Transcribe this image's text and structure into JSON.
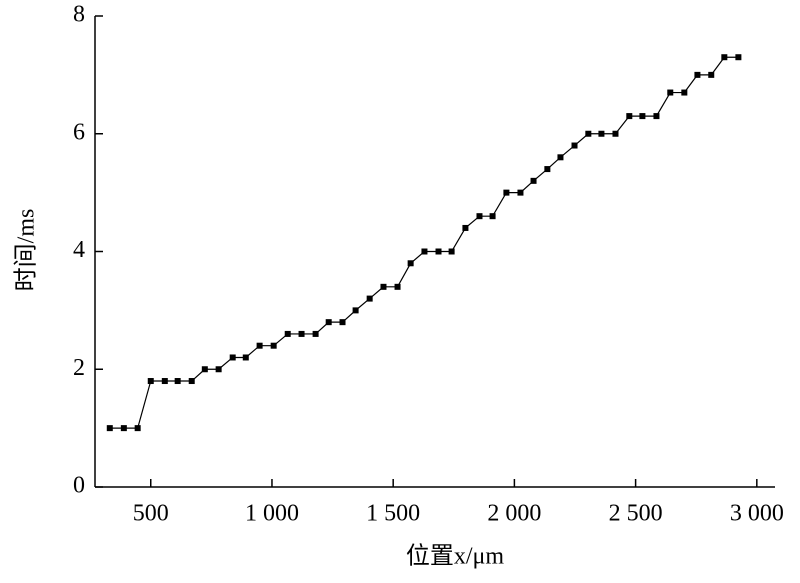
{
  "chart_data": {
    "type": "line",
    "xlabel": "位置x/μm",
    "ylabel": "时间/ms",
    "x": [
      331,
      389,
      446,
      500,
      558,
      611,
      669,
      723,
      780,
      838,
      892,
      949,
      1007,
      1065,
      1122,
      1180,
      1234,
      1291,
      1345,
      1403,
      1460,
      1518,
      1572,
      1629,
      1687,
      1741,
      1798,
      1856,
      1910,
      1967,
      2025,
      2079,
      2136,
      2190,
      2248,
      2305,
      2359,
      2417,
      2474,
      2528,
      2586,
      2643,
      2701,
      2755,
      2812,
      2866,
      2924
    ],
    "values": [
      1.0,
      1.0,
      1.0,
      1.8,
      1.8,
      1.8,
      1.8,
      2.0,
      2.0,
      2.2,
      2.2,
      2.4,
      2.4,
      2.6,
      2.6,
      2.6,
      2.8,
      2.8,
      3.0,
      3.2,
      3.4,
      3.4,
      3.8,
      4.0,
      4.0,
      4.0,
      4.4,
      4.6,
      4.6,
      5.0,
      5.0,
      5.2,
      5.4,
      5.6,
      5.8,
      6.0,
      6.0,
      6.0,
      6.3,
      6.3,
      6.3,
      6.7,
      6.7,
      7.0,
      7.0,
      7.3,
      7.3
    ],
    "color": "#000000",
    "xlim": [
      270,
      3075
    ],
    "ylim": [
      0,
      8
    ],
    "xticks": [
      500,
      {
        "value": 1000,
        "label": "1 000"
      },
      {
        "value": 1500,
        "label": "1 500"
      },
      {
        "value": 2000,
        "label": "2 000"
      },
      {
        "value": 2500,
        "label": "2 500"
      },
      {
        "value": 3000,
        "label": "3 000"
      }
    ],
    "yticks": [
      0,
      2,
      4,
      6,
      8
    ]
  }
}
